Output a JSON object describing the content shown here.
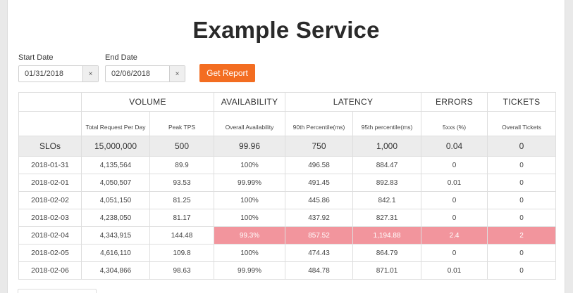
{
  "header": {
    "title": "Example Service"
  },
  "filters": {
    "start_label": "Start Date",
    "start_value": "01/31/2018",
    "end_label": "End Date",
    "end_value": "02/06/2018",
    "clear_glyph": "×",
    "submit_label": "Get Report"
  },
  "colors": {
    "accent": "#f36d21",
    "violation": "#f2959d",
    "slo_row": "#ececec"
  },
  "table": {
    "groups": [
      "VOLUME",
      "AVAILABILITY",
      "LATENCY",
      "ERRORS",
      "TICKETS"
    ],
    "columns": [
      "Total Request Per Day",
      "Peak TPS",
      "Overall Availability",
      "90th Percentile(ms)",
      "95th percentile(ms)",
      "5xxs (%)",
      "Overall Tickets"
    ],
    "slo": {
      "label": "SLOs",
      "values": [
        "15,000,000",
        "500",
        "99.96",
        "750",
        "1,000",
        "0.04",
        "0"
      ]
    },
    "rows": [
      {
        "date": "2018-01-31",
        "cells": [
          "4,135,564",
          "89.9",
          "100%",
          "496.58",
          "884.47",
          "0",
          "0"
        ],
        "breach": false
      },
      {
        "date": "2018-02-01",
        "cells": [
          "4,050,507",
          "93.53",
          "99.99%",
          "491.45",
          "892.83",
          "0.01",
          "0"
        ],
        "breach": false
      },
      {
        "date": "2018-02-02",
        "cells": [
          "4,051,150",
          "81.25",
          "100%",
          "445.86",
          "842.1",
          "0",
          "0"
        ],
        "breach": false
      },
      {
        "date": "2018-02-03",
        "cells": [
          "4,238,050",
          "81.17",
          "100%",
          "437.92",
          "827.31",
          "0",
          "0"
        ],
        "breach": false
      },
      {
        "date": "2018-02-04",
        "cells": [
          "4,343,915",
          "144.48",
          "99.3%",
          "857.52",
          "1,194.88",
          "2.4",
          "2"
        ],
        "breach": true
      },
      {
        "date": "2018-02-05",
        "cells": [
          "4,616,110",
          "109.8",
          "100%",
          "474.43",
          "864.79",
          "0",
          "0"
        ],
        "breach": false
      },
      {
        "date": "2018-02-06",
        "cells": [
          "4,304,866",
          "98.63",
          "99.99%",
          "484.78",
          "871.01",
          "0.01",
          "0"
        ],
        "breach": false
      }
    ]
  }
}
